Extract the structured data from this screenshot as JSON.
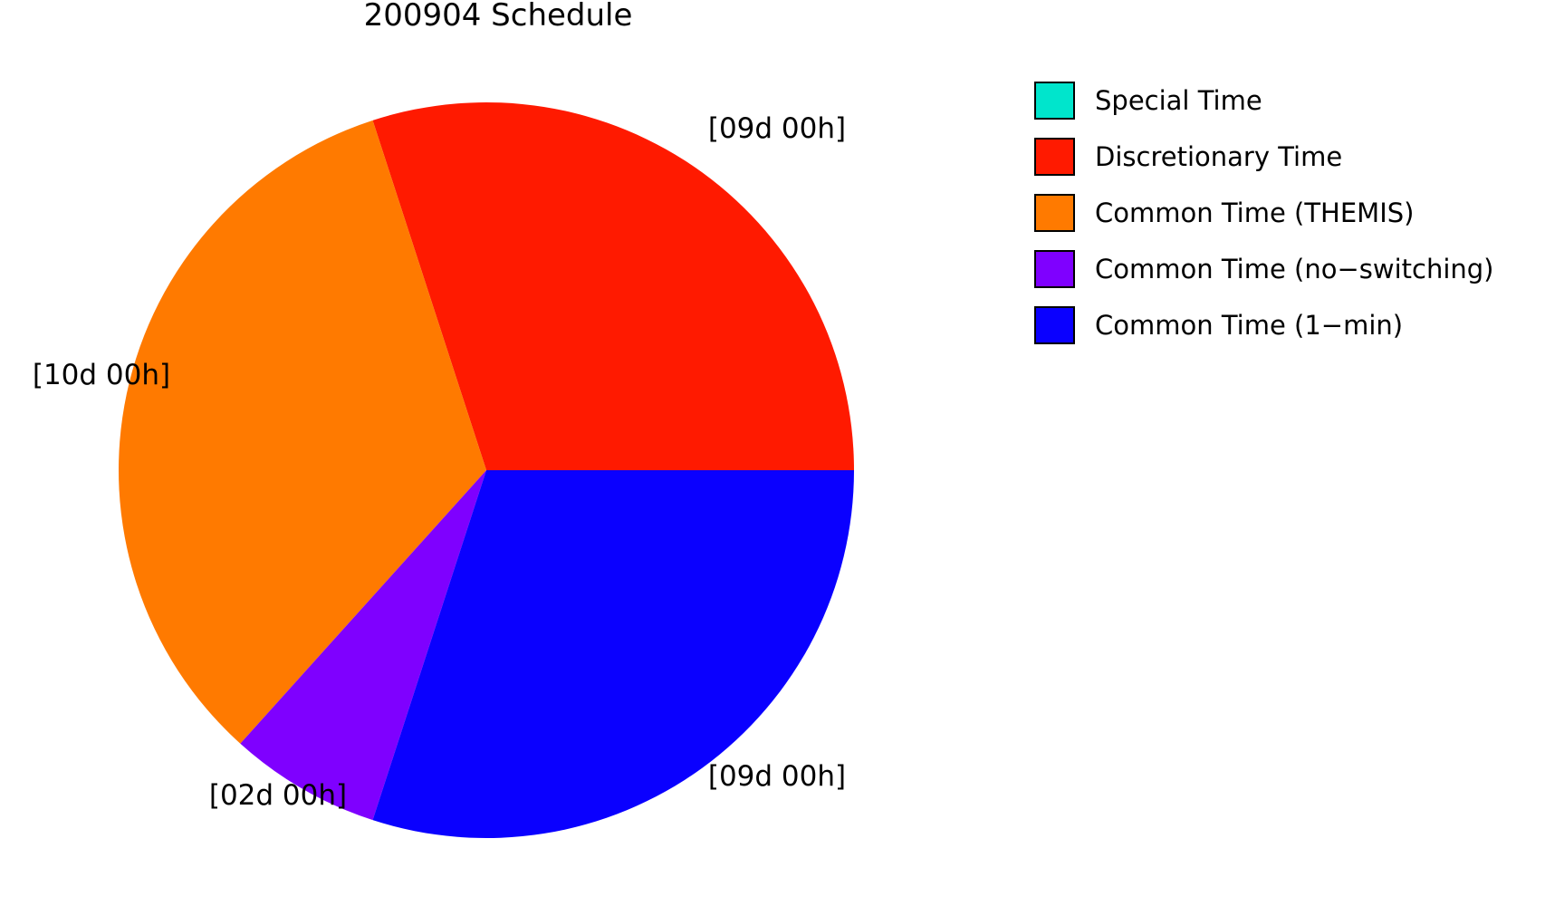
{
  "chart_data": {
    "type": "pie",
    "title": "200904 Schedule",
    "categories": [
      "Special Time",
      "Discretionary Time",
      "Common Time (THEMIS)",
      "Common Time (no-switching)",
      "Common Time (1-min)"
    ],
    "values": [
      0,
      9,
      10,
      2,
      9
    ],
    "value_unit": "days",
    "slice_labels": [
      "",
      "[09d 00h]",
      "[10d 00h]",
      "[02d 00h]",
      "[09d 00h]"
    ],
    "colors": [
      "#00e5cc",
      "#ff1a00",
      "#ff7a00",
      "#7f00ff",
      "#0a00ff"
    ],
    "start_angle_deg": 0,
    "direction": "counterclockwise",
    "legend_position": "top-right",
    "legend": [
      {
        "label": "Special Time",
        "color": "#00e5cc"
      },
      {
        "label": "Discretionary Time",
        "color": "#ff1a00"
      },
      {
        "label": "Common Time (THEMIS)",
        "color": "#ff7a00"
      },
      {
        "label": "Common Time (no−switching)",
        "color": "#7f00ff"
      },
      {
        "label": "Common Time (1−min)",
        "color": "#0a00ff"
      }
    ]
  }
}
